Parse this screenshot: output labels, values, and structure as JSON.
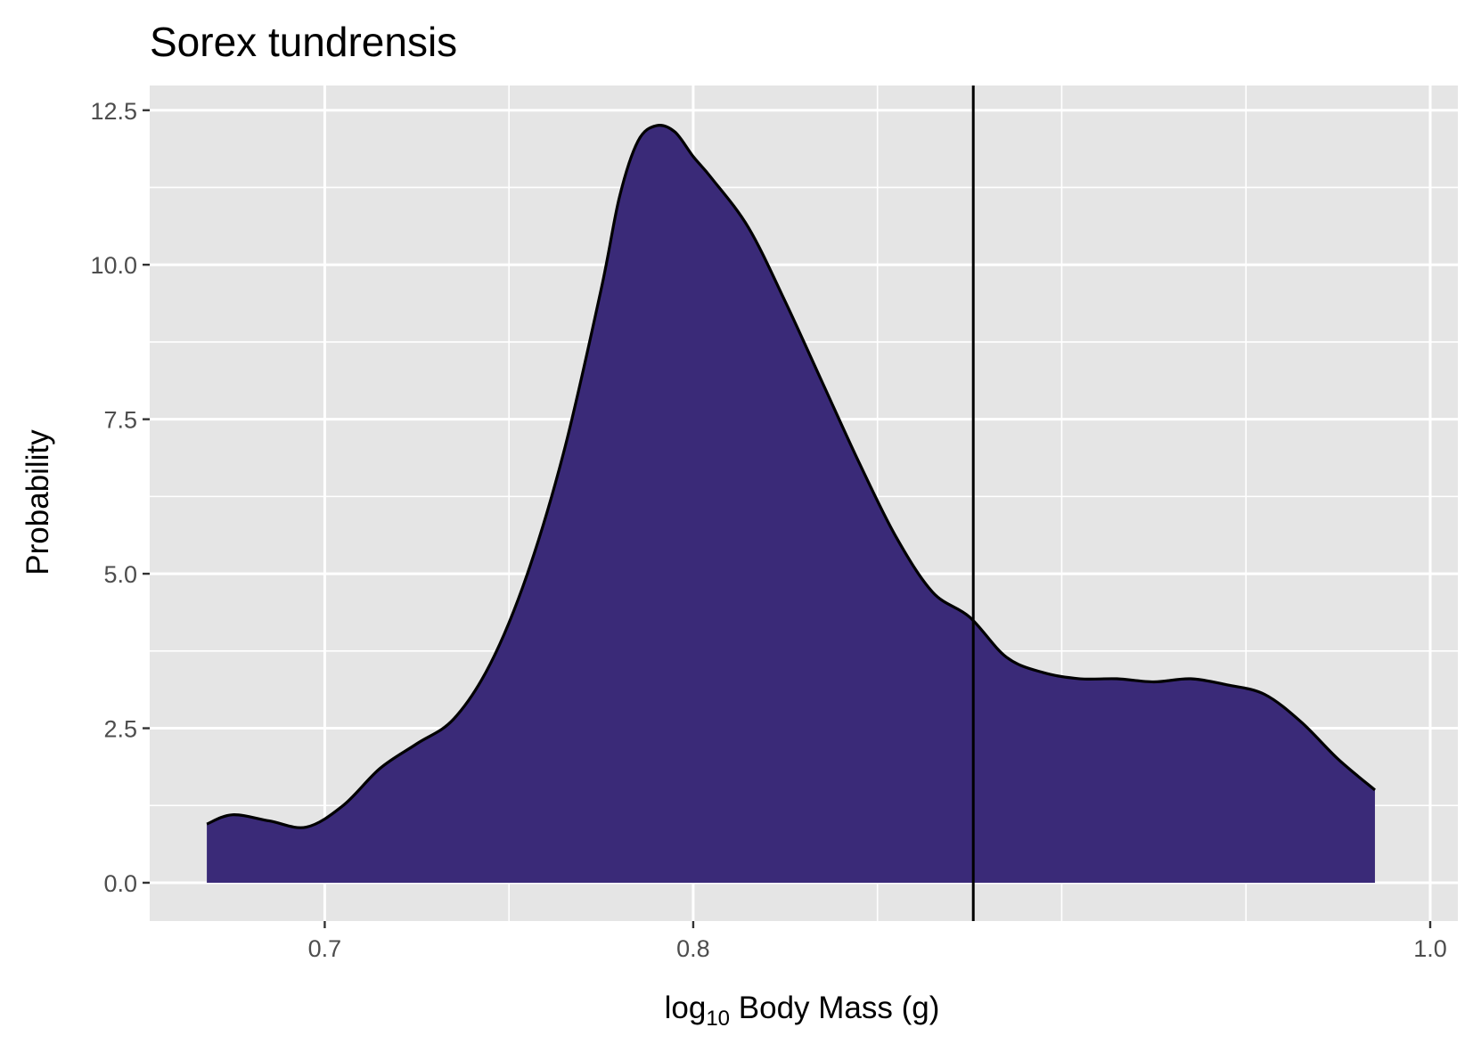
{
  "chart_data": {
    "type": "area",
    "title": "Sorex tundrensis",
    "xlabel_prefix": "log",
    "xlabel_sub": "10",
    "xlabel_suffix": " Body Mass (g)",
    "ylabel": "Probability",
    "xlim": [
      0.6525,
      1.0075
    ],
    "ylim": [
      -0.62,
      12.9
    ],
    "x_ticks": [
      0.7,
      0.8,
      1.0
    ],
    "x_tick_labels": [
      "0.7",
      "0.8",
      "1.0"
    ],
    "x_minor": [
      0.65,
      0.75,
      0.85,
      0.9,
      0.95
    ],
    "y_ticks": [
      0,
      2.5,
      5,
      7.5,
      10,
      12.5
    ],
    "y_tick_labels": [
      "0.0",
      "2.5",
      "5.0",
      "7.5",
      "10.0",
      "12.5"
    ],
    "y_minor": [
      1.25,
      3.75,
      6.25,
      8.75,
      11.25
    ],
    "vline_x": 0.876,
    "fill_color": "#3a2a78",
    "line_color": "#000000",
    "panel_background": "#e5e5e5",
    "grid": true,
    "density": {
      "x": [
        0.668,
        0.675,
        0.685,
        0.695,
        0.705,
        0.715,
        0.725,
        0.735,
        0.745,
        0.755,
        0.765,
        0.775,
        0.78,
        0.785,
        0.79,
        0.795,
        0.8,
        0.805,
        0.815,
        0.825,
        0.835,
        0.845,
        0.855,
        0.865,
        0.875,
        0.885,
        0.895,
        0.905,
        0.915,
        0.925,
        0.935,
        0.945,
        0.955,
        0.965,
        0.975,
        0.985
      ],
      "y": [
        0.95,
        1.1,
        1.0,
        0.9,
        1.25,
        1.85,
        2.25,
        2.65,
        3.55,
        5.0,
        7.0,
        9.6,
        11.1,
        12.0,
        12.25,
        12.15,
        11.75,
        11.4,
        10.6,
        9.4,
        8.1,
        6.8,
        5.6,
        4.7,
        4.3,
        3.65,
        3.4,
        3.3,
        3.3,
        3.25,
        3.3,
        3.2,
        3.05,
        2.6,
        2.0,
        1.5
      ]
    }
  }
}
